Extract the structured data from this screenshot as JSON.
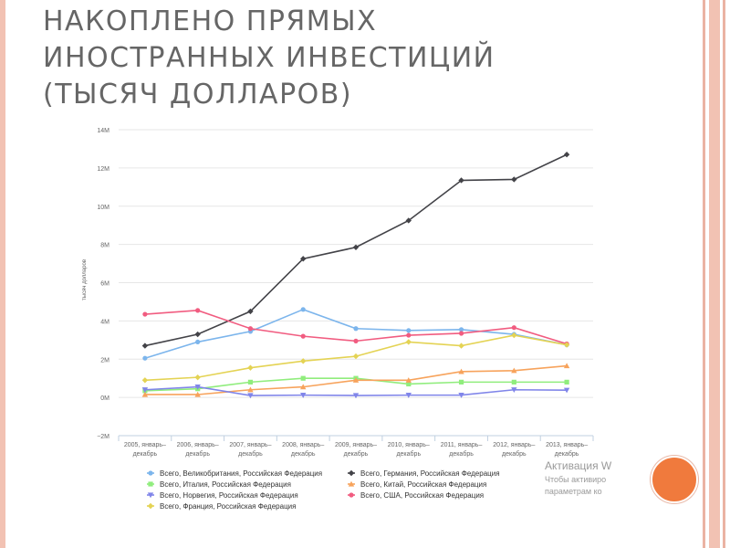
{
  "slide": {
    "title_lines": [
      "НАКОПЛЕНО ПРЯМЫХ",
      "ИНОСТРАННЫХ ИНВЕСТИЦИЙ",
      "(ТЫСЯЧ ДОЛЛАРОВ)"
    ],
    "colors": {
      "title": "#666666",
      "accent_circle": "#f07a3d",
      "rail": "#f2c2b3"
    }
  },
  "watermark": {
    "line1": "Активация W",
    "line2": "Чтобы активиро",
    "line3": "параметрам ко"
  },
  "chart_data": {
    "type": "line",
    "ylabel": "тысяч долларов",
    "ylim": [
      -2,
      14
    ],
    "yticks": [
      {
        "value": 14,
        "label": "14M"
      },
      {
        "value": 12,
        "label": "12M"
      },
      {
        "value": 10,
        "label": "10M"
      },
      {
        "value": 8,
        "label": "8M"
      },
      {
        "value": 6,
        "label": "6M"
      },
      {
        "value": 4,
        "label": "4M"
      },
      {
        "value": 2,
        "label": "2M"
      },
      {
        "value": 0,
        "label": "0M"
      },
      {
        "value": -2,
        "label": "−2M"
      }
    ],
    "categories": [
      [
        "2005, январь–",
        "декабрь"
      ],
      [
        "2006, январь–",
        "декабрь"
      ],
      [
        "2007, январь–",
        "декабрь"
      ],
      [
        "2008, январь–",
        "декабрь"
      ],
      [
        "2009, январь–",
        "декабрь"
      ],
      [
        "2010, январь–",
        "декабрь"
      ],
      [
        "2011, январь–",
        "декабрь"
      ],
      [
        "2012, январь–",
        "декабрь"
      ],
      [
        "2013, январь–",
        "декабрь"
      ]
    ],
    "grid": true,
    "legend_position": "bottom",
    "series": [
      {
        "name": "Всего, Великобритания, Российская Федерация",
        "color": "#7cb5ec",
        "marker": "circle",
        "values": [
          2.05,
          2.9,
          3.45,
          4.6,
          3.6,
          3.5,
          3.55,
          3.3,
          2.75
        ]
      },
      {
        "name": "Всего, Германия, Российская Федерация",
        "color": "#434348",
        "marker": "diamond",
        "values": [
          2.7,
          3.3,
          4.5,
          7.25,
          7.85,
          9.25,
          11.35,
          11.4,
          12.7
        ]
      },
      {
        "name": "Всего, Италия, Российская Федерация",
        "color": "#90ed7d",
        "marker": "square",
        "values": [
          0.35,
          0.45,
          0.8,
          1.0,
          1.0,
          0.7,
          0.8,
          0.8,
          0.8
        ]
      },
      {
        "name": "Всего, Китай, Российская Федерация",
        "color": "#f7a35c",
        "marker": "triangle",
        "values": [
          0.15,
          0.15,
          0.4,
          0.55,
          0.9,
          0.9,
          1.35,
          1.4,
          1.65
        ]
      },
      {
        "name": "Всего, Норвегия, Российская Федерация",
        "color": "#8085e9",
        "marker": "triangle-down",
        "values": [
          0.4,
          0.55,
          0.1,
          0.12,
          0.1,
          0.12,
          0.12,
          0.4,
          0.38
        ]
      },
      {
        "name": "Всего, США, Российская Федерация",
        "color": "#f15c80",
        "marker": "circle",
        "values": [
          4.35,
          4.55,
          3.6,
          3.2,
          2.95,
          3.25,
          3.35,
          3.65,
          2.8
        ]
      },
      {
        "name": "Всего, Франция, Российская Федерация",
        "color": "#e4d354",
        "marker": "diamond",
        "values": [
          0.9,
          1.05,
          1.55,
          1.9,
          2.15,
          2.9,
          2.7,
          3.25,
          2.75
        ]
      }
    ]
  }
}
